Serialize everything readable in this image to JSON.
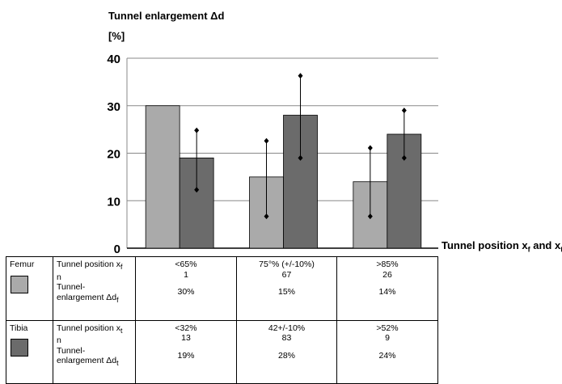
{
  "chart_data": {
    "type": "bar",
    "ylabel_line1": "Tunnel enlargement Δd",
    "ylabel_line2": "[%]",
    "xlabel": "Tunnel position x",
    "xlabel_sub_f": "f",
    "xlabel_and": " and x",
    "xlabel_sub_t": "t",
    "ylim": [
      0,
      40
    ],
    "yticks": [
      "0",
      "10",
      "20",
      "30",
      "40"
    ],
    "grid": true,
    "series": [
      {
        "name": "Femur",
        "color": "#aaaaaa",
        "values": [
          30,
          15,
          14
        ],
        "err_low": [
          null,
          6.7,
          6.7
        ],
        "err_high": [
          null,
          22.6,
          21.1
        ]
      },
      {
        "name": "Tibia",
        "color": "#6b6b6b",
        "values": [
          19,
          28,
          24
        ],
        "err_low": [
          12.3,
          19,
          19
        ],
        "err_high": [
          24.8,
          36.3,
          29
        ]
      }
    ]
  },
  "table": {
    "rows": [
      {
        "name": "Femur",
        "color": "#aaaaaa",
        "label_position": "Tunnel position x",
        "label_position_sub": "f",
        "label_n": "n",
        "label_enl_1": "Tunnel-",
        "label_enl_2": "enlargement Δd",
        "label_enl_sub": "f",
        "cols": [
          {
            "position": "<65%",
            "n": "1",
            "enl": "30%"
          },
          {
            "position": "75°% (+/-10%)",
            "n": "67",
            "enl": "15%"
          },
          {
            "position": ">85%",
            "n": "26",
            "enl": "14%"
          }
        ]
      },
      {
        "name": "Tibia",
        "color": "#6b6b6b",
        "label_position": "Tunnel position x",
        "label_position_sub": "t",
        "label_n": "n",
        "label_enl_1": "Tunnel-",
        "label_enl_2": "enlargement Δd",
        "label_enl_sub": "t",
        "cols": [
          {
            "position": "<32%",
            "n": "13",
            "enl": "19%"
          },
          {
            "position": "42+/-10%",
            "n": "83",
            "enl": "28%"
          },
          {
            "position": ">52%",
            "n": "9",
            "enl": "24%"
          }
        ]
      }
    ]
  }
}
